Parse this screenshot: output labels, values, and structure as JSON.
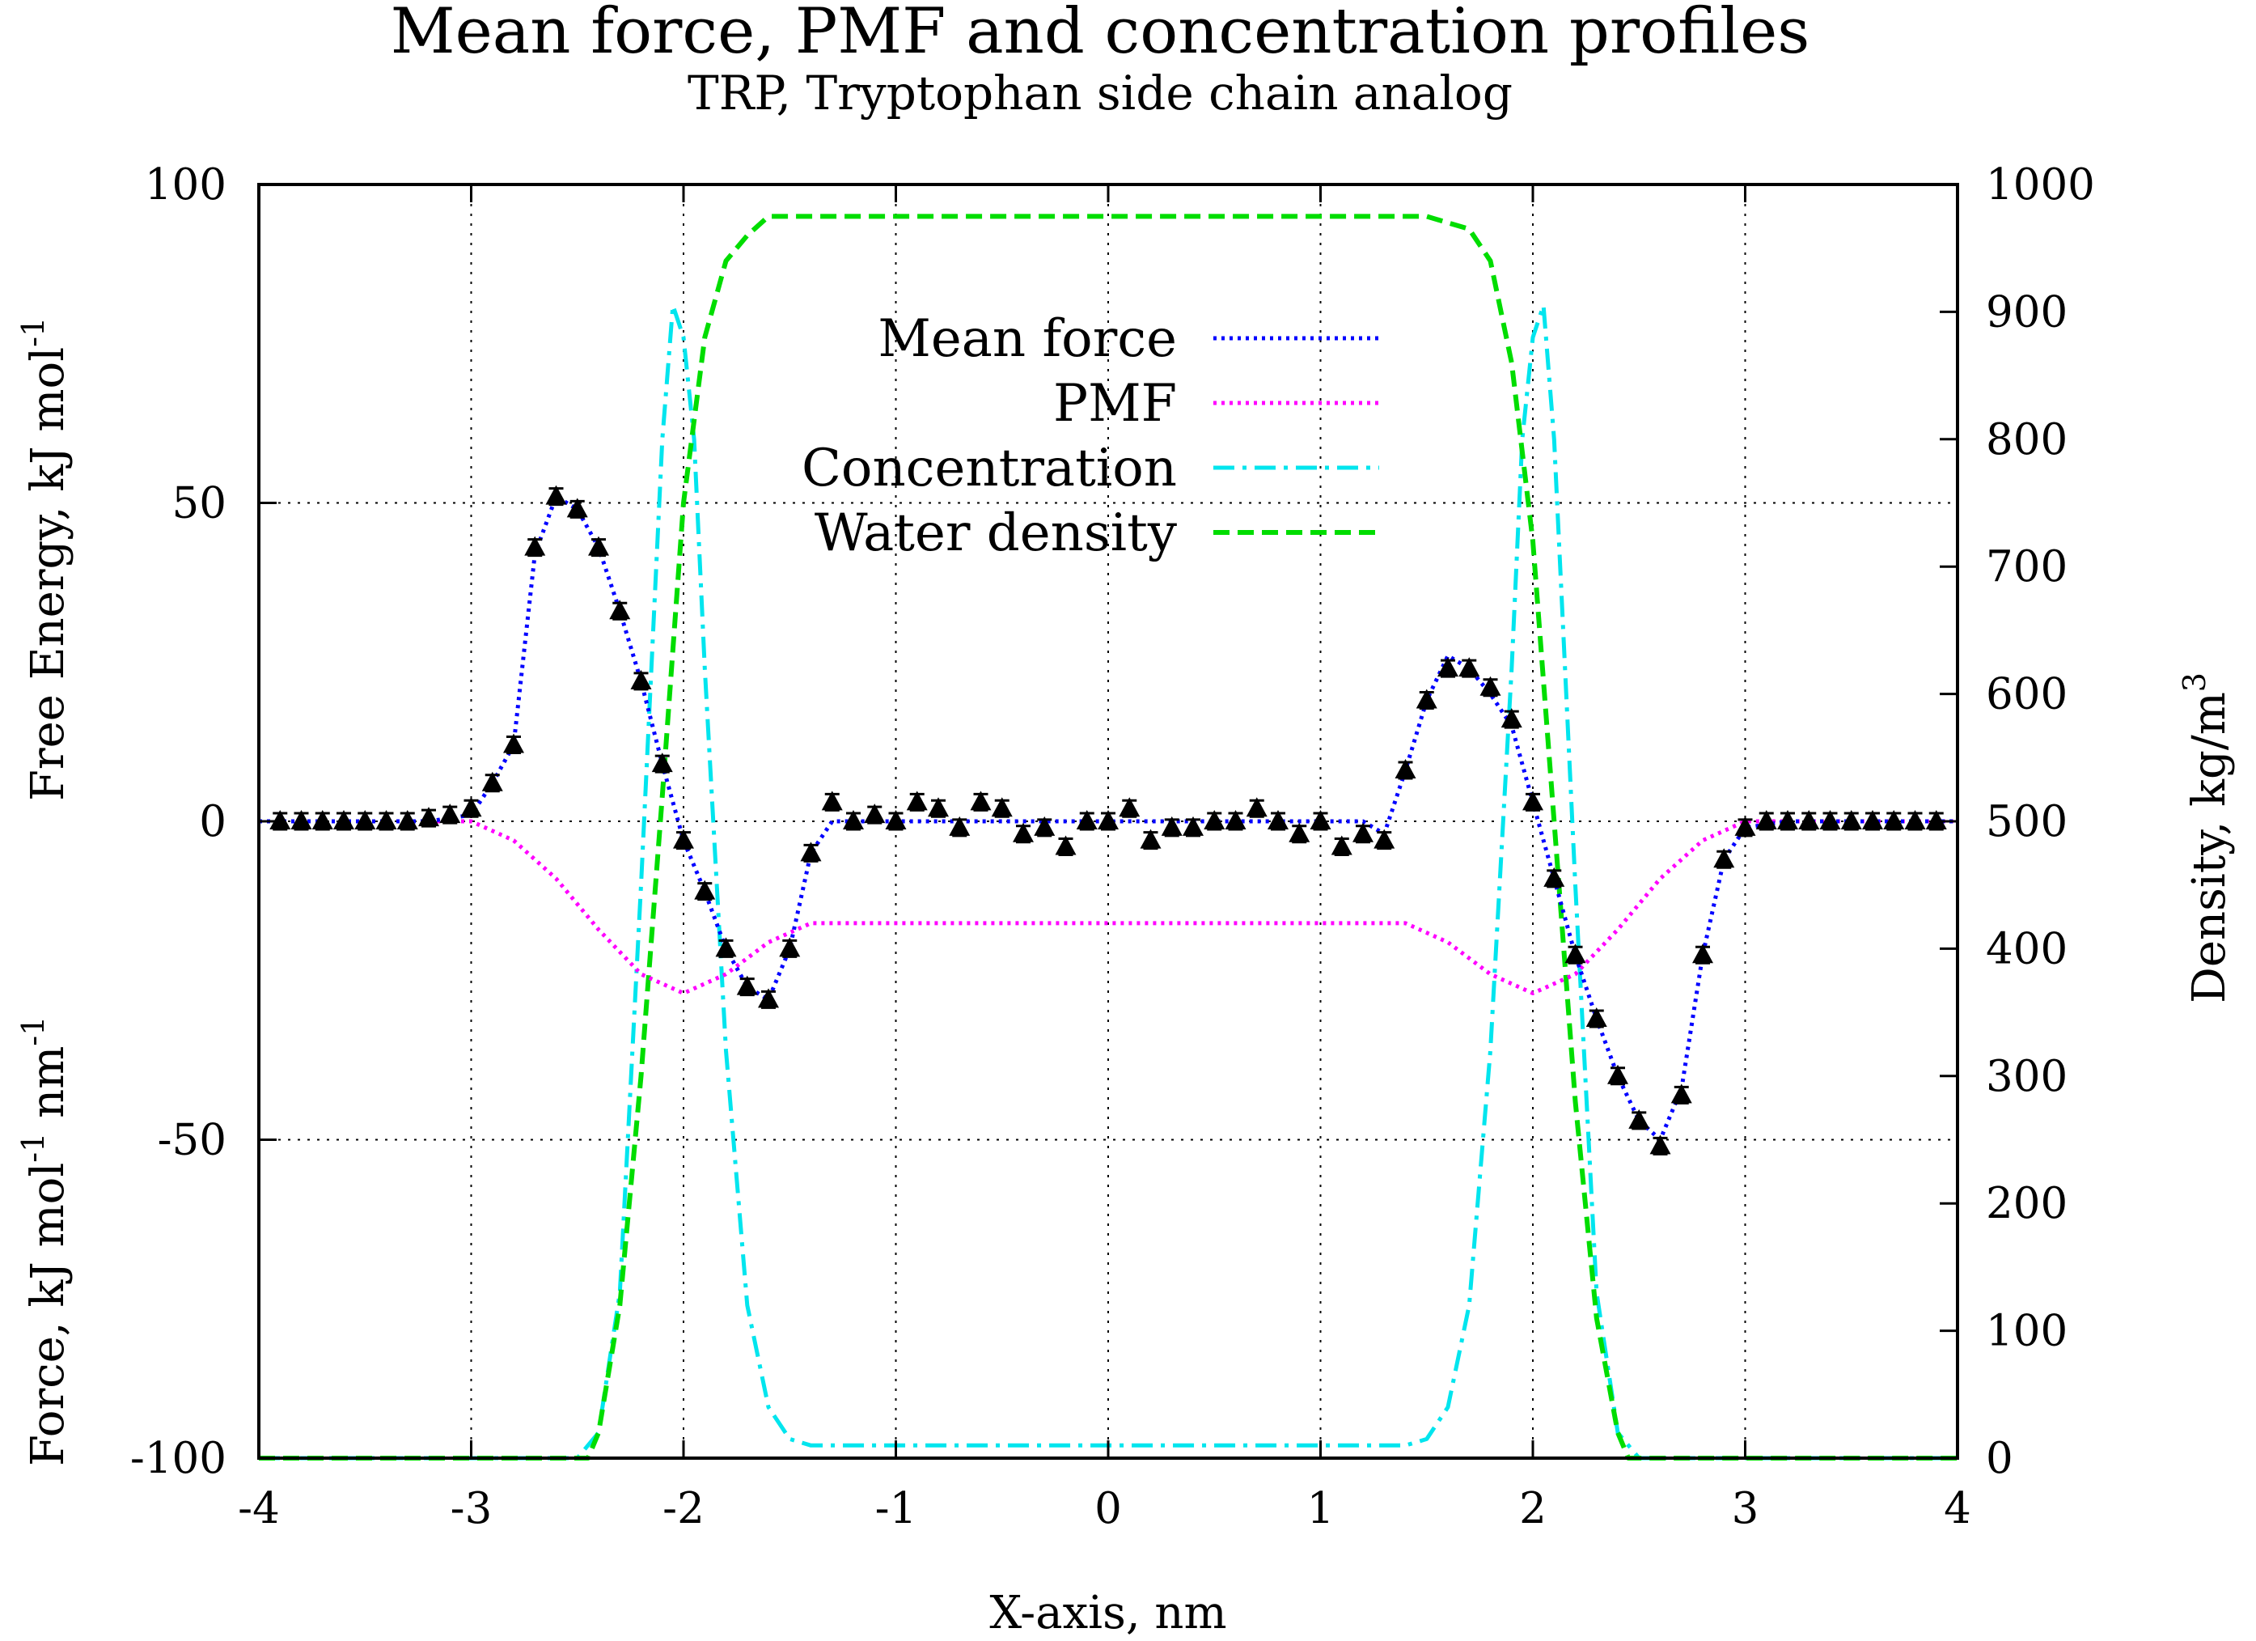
{
  "chart_data": {
    "type": "line",
    "title": "Mean force, PMF and concentration profiles",
    "subtitle": "TRP, Tryptophan side chain analog",
    "xlabel": "X-axis, nm",
    "ylabel_left": {
      "force_prefix": "Force, kJ mol",
      "force_exp1": "-1",
      "force_mid": " nm",
      "force_exp2": "-1",
      "energy_prefix": "Free Energy, kJ mol",
      "energy_exp": "-1"
    },
    "ylabel_right": {
      "prefix": "Density, kg/m",
      "exp": "3"
    },
    "xlim": [
      -4,
      4
    ],
    "ylim_left": [
      -100,
      100
    ],
    "ylim_right": [
      0,
      1000
    ],
    "x_ticks": [
      "-4",
      "-3",
      "-2",
      "-1",
      "0",
      "1",
      "2",
      "3",
      "4"
    ],
    "y_ticks_left": [
      "-100",
      "-50",
      "0",
      "50",
      "100"
    ],
    "y_ticks_right": [
      "0",
      "100",
      "200",
      "300",
      "400",
      "500",
      "600",
      "700",
      "800",
      "900",
      "1000"
    ],
    "grid": true,
    "legend_position": "top-center",
    "colors": {
      "mean_force": "#0000ff",
      "pmf": "#ff00ff",
      "concentration": "#00e5ee",
      "water_density": "#00dd00",
      "points": "#000000"
    },
    "series": [
      {
        "name": "Mean force",
        "axis": "left",
        "style": "dotted",
        "x": [
          -4.0,
          -3.2,
          -3.0,
          -2.9,
          -2.8,
          -2.7,
          -2.6,
          -2.5,
          -2.4,
          -2.3,
          -2.2,
          -2.1,
          -2.0,
          -1.9,
          -1.8,
          -1.7,
          -1.6,
          -1.5,
          -1.4,
          -1.3,
          -1.2,
          1.2,
          1.3,
          1.4,
          1.5,
          1.6,
          1.7,
          1.8,
          1.9,
          2.0,
          2.1,
          2.2,
          2.3,
          2.4,
          2.5,
          2.6,
          2.7,
          2.8,
          2.9,
          3.0,
          3.2,
          4.0
        ],
        "y": [
          0,
          0,
          1,
          6,
          12,
          42,
          51,
          49,
          43,
          33,
          22,
          9,
          -3,
          -11,
          -20,
          -26,
          -28,
          -20,
          -5,
          0,
          0,
          0,
          -2,
          8,
          19,
          26,
          24,
          20,
          15,
          3,
          -9,
          -21,
          -31,
          -40,
          -47,
          -50,
          -42,
          -21,
          -6,
          -1,
          0,
          0
        ]
      },
      {
        "name": "PMF",
        "axis": "left",
        "style": "dotted",
        "x": [
          -4.0,
          -3.0,
          -2.8,
          -2.6,
          -2.4,
          -2.2,
          -2.0,
          -1.8,
          -1.6,
          -1.4,
          -1.2,
          1.2,
          1.4,
          1.6,
          1.8,
          2.0,
          2.2,
          2.4,
          2.6,
          2.8,
          3.0,
          4.0
        ],
        "y": [
          0,
          0,
          -3,
          -9,
          -17,
          -24,
          -27,
          -24,
          -19,
          -16,
          -16,
          -16,
          -16,
          -19,
          -24,
          -27,
          -24,
          -17,
          -9,
          -3,
          0,
          0
        ]
      },
      {
        "name": "Concentration",
        "axis": "right",
        "style": "dash-dot",
        "x": [
          -4.0,
          -2.5,
          -2.4,
          -2.3,
          -2.2,
          -2.1,
          -2.05,
          -2.0,
          -1.95,
          -1.9,
          -1.8,
          -1.7,
          -1.6,
          -1.5,
          -1.4,
          1.4,
          1.5,
          1.6,
          1.7,
          1.8,
          1.9,
          1.95,
          2.0,
          2.05,
          2.1,
          2.2,
          2.3,
          2.4,
          2.5,
          4.0
        ],
        "y": [
          0,
          0,
          20,
          130,
          450,
          800,
          905,
          880,
          800,
          620,
          320,
          120,
          40,
          15,
          10,
          10,
          15,
          40,
          120,
          320,
          620,
          800,
          880,
          905,
          800,
          450,
          130,
          20,
          0,
          0
        ]
      },
      {
        "name": "Water density",
        "axis": "right",
        "style": "dashed",
        "x": [
          -4.0,
          -2.45,
          -2.4,
          -2.3,
          -2.2,
          -2.1,
          -2.0,
          -1.9,
          -1.8,
          -1.7,
          -1.6,
          -1.4,
          -1.0,
          -0.5,
          0.0,
          0.5,
          1.0,
          1.5,
          1.7,
          1.8,
          1.9,
          2.0,
          2.1,
          2.2,
          2.3,
          2.4,
          2.45,
          4.0
        ],
        "y": [
          0,
          0,
          20,
          120,
          300,
          520,
          750,
          880,
          940,
          960,
          975,
          975,
          975,
          975,
          975,
          975,
          975,
          975,
          965,
          940,
          860,
          720,
          500,
          280,
          110,
          20,
          0,
          0
        ]
      }
    ],
    "points": {
      "name": "",
      "axis": "left",
      "marker": "triangle",
      "x": [
        -3.9,
        -3.8,
        -3.7,
        -3.6,
        -3.5,
        -3.4,
        -3.3,
        -3.2,
        -3.1,
        -3.0,
        -2.9,
        -2.8,
        -2.7,
        -2.6,
        -2.5,
        -2.4,
        -2.3,
        -2.2,
        -2.1,
        -2.0,
        -1.9,
        -1.8,
        -1.7,
        -1.6,
        -1.5,
        -1.4,
        -1.3,
        -1.2,
        -1.1,
        -1.0,
        -0.9,
        -0.8,
        -0.7,
        -0.6,
        -0.5,
        -0.4,
        -0.3,
        -0.2,
        -0.1,
        0.0,
        0.1,
        0.2,
        0.3,
        0.4,
        0.5,
        0.6,
        0.7,
        0.8,
        0.9,
        1.0,
        1.1,
        1.2,
        1.3,
        1.4,
        1.5,
        1.6,
        1.7,
        1.8,
        1.9,
        2.0,
        2.1,
        2.2,
        2.3,
        2.4,
        2.5,
        2.6,
        2.7,
        2.8,
        2.9,
        3.0,
        3.1,
        3.2,
        3.3,
        3.4,
        3.5,
        3.6,
        3.7,
        3.8,
        3.9
      ],
      "y": [
        0,
        0,
        0,
        0,
        0,
        0,
        0,
        0.5,
        1,
        2,
        6,
        12,
        43,
        51,
        49,
        43,
        33,
        22,
        9,
        -3,
        -11,
        -20,
        -26,
        -28,
        -20,
        -5,
        3,
        0,
        1,
        0,
        3,
        2,
        -1,
        3,
        2,
        -2,
        -1,
        -4,
        0,
        0,
        2,
        -3,
        -1,
        -1,
        0,
        0,
        2,
        0,
        -2,
        0,
        -4,
        -2,
        -3,
        8,
        19,
        24,
        24,
        21,
        16,
        3,
        -9,
        -21,
        -31,
        -40,
        -47,
        -51,
        -43,
        -21,
        -6,
        -1,
        0,
        0,
        0,
        0,
        0,
        0,
        0,
        0,
        0
      ]
    }
  }
}
